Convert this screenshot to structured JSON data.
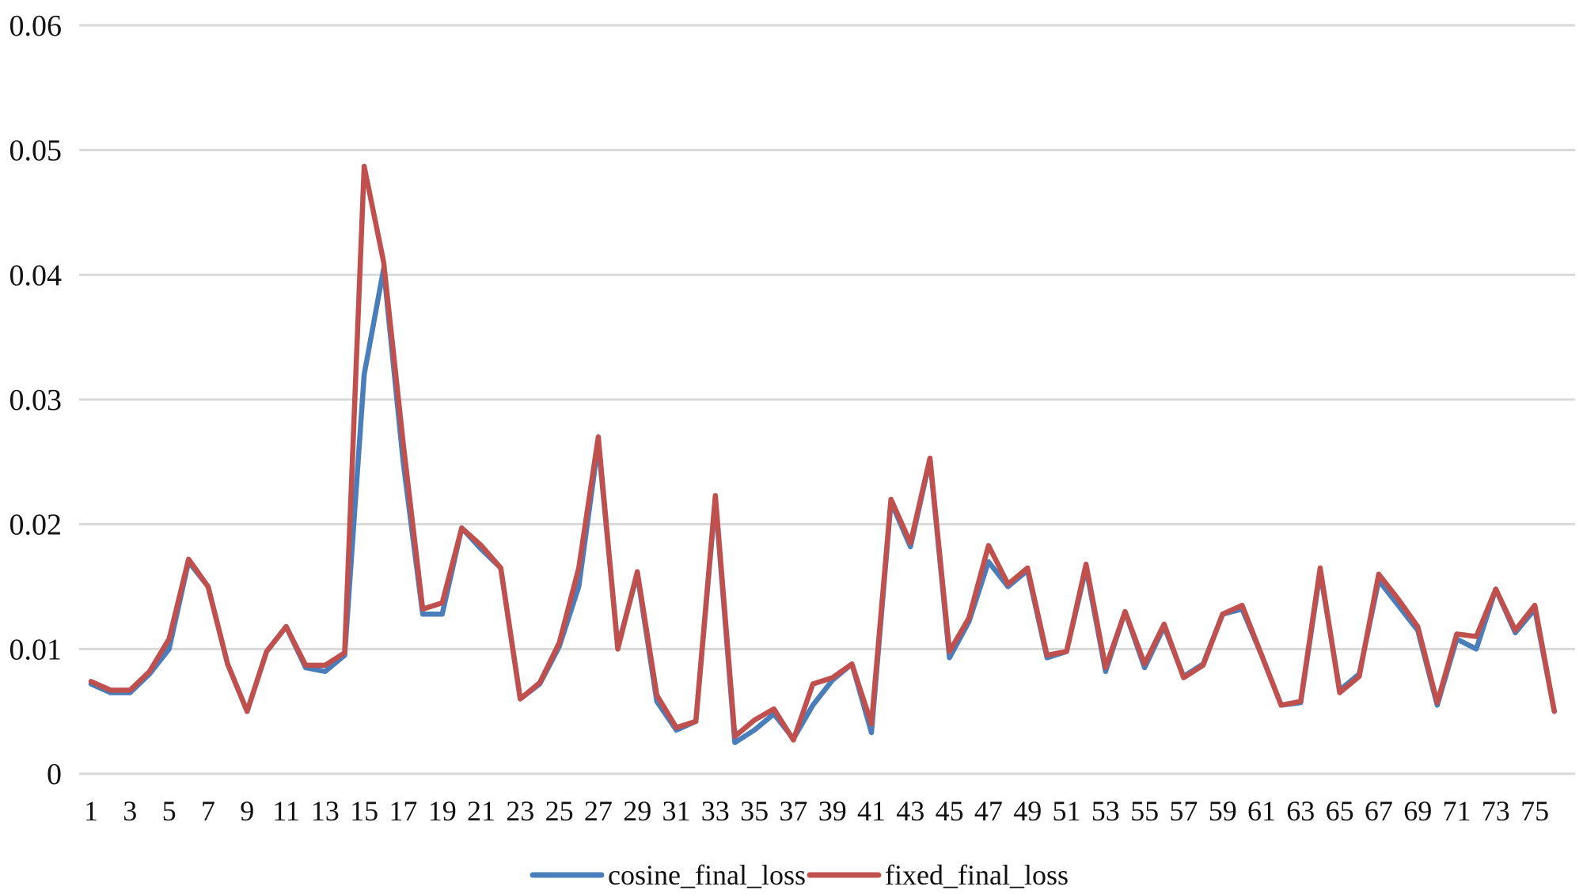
{
  "chart_data": {
    "type": "line",
    "title": "",
    "xlabel": "",
    "ylabel": "",
    "ylim": [
      0,
      0.06
    ],
    "y_ticks": [
      "0",
      "0.01",
      "0.02",
      "0.03",
      "0.04",
      "0.05",
      "0.06"
    ],
    "y_tick_values": [
      0,
      0.01,
      0.02,
      0.03,
      0.04,
      0.05,
      0.06
    ],
    "x": [
      1,
      2,
      3,
      4,
      5,
      6,
      7,
      8,
      9,
      10,
      11,
      12,
      13,
      14,
      15,
      16,
      17,
      18,
      19,
      20,
      21,
      22,
      23,
      24,
      25,
      26,
      27,
      28,
      29,
      30,
      31,
      32,
      33,
      34,
      35,
      36,
      37,
      38,
      39,
      40,
      41,
      42,
      43,
      44,
      45,
      46,
      47,
      48,
      49,
      50,
      51,
      52,
      53,
      54,
      55,
      56,
      57,
      58,
      59,
      60,
      61,
      62,
      63,
      64,
      65,
      66,
      67,
      68,
      69,
      70,
      71,
      72,
      73,
      74,
      75,
      76
    ],
    "x_tick_labels": [
      "1",
      "3",
      "5",
      "7",
      "9",
      "11",
      "13",
      "15",
      "17",
      "19",
      "21",
      "23",
      "25",
      "27",
      "29",
      "31",
      "33",
      "35",
      "37",
      "39",
      "41",
      "43",
      "45",
      "47",
      "49",
      "51",
      "53",
      "55",
      "57",
      "59",
      "61",
      "63",
      "65",
      "67",
      "69",
      "71",
      "73",
      "75"
    ],
    "grid": true,
    "legend_position": "bottom",
    "series": [
      {
        "name": "cosine_final_loss",
        "color": "#4a7ebb",
        "values": [
          0.0072,
          0.0065,
          0.0065,
          0.008,
          0.01,
          0.017,
          0.015,
          0.0088,
          0.005,
          0.0098,
          0.0118,
          0.0085,
          0.0082,
          0.0095,
          0.032,
          0.0405,
          0.025,
          0.0128,
          0.0128,
          0.0197,
          0.018,
          0.0165,
          0.006,
          0.0072,
          0.0102,
          0.015,
          0.0265,
          0.0102,
          0.016,
          0.0058,
          0.0035,
          0.0042,
          0.022,
          0.0025,
          0.0035,
          0.0048,
          0.0028,
          0.0055,
          0.0075,
          0.0088,
          0.0033,
          0.0218,
          0.0182,
          0.0252,
          0.0093,
          0.0122,
          0.017,
          0.015,
          0.0163,
          0.0093,
          0.0098,
          0.0165,
          0.0082,
          0.013,
          0.0085,
          0.0118,
          0.0078,
          0.0088,
          0.0128,
          0.0132,
          0.0095,
          0.0055,
          0.0057,
          0.0162,
          0.0067,
          0.008,
          0.0155,
          0.0135,
          0.0115,
          0.0055,
          0.0108,
          0.01,
          0.0148,
          0.0113,
          0.0132,
          0.005
        ]
      },
      {
        "name": "fixed_final_loss",
        "color": "#c0504d",
        "values": [
          0.0074,
          0.0067,
          0.0067,
          0.0082,
          0.0108,
          0.0172,
          0.015,
          0.0088,
          0.005,
          0.0098,
          0.0118,
          0.0087,
          0.0087,
          0.0097,
          0.0487,
          0.041,
          0.0265,
          0.0132,
          0.0137,
          0.0197,
          0.0183,
          0.0165,
          0.006,
          0.0073,
          0.0105,
          0.0165,
          0.027,
          0.01,
          0.0162,
          0.0063,
          0.0037,
          0.0042,
          0.0223,
          0.003,
          0.0043,
          0.0052,
          0.0027,
          0.0072,
          0.0077,
          0.0088,
          0.004,
          0.022,
          0.0185,
          0.0253,
          0.0098,
          0.0125,
          0.0183,
          0.0152,
          0.0165,
          0.0095,
          0.0098,
          0.0168,
          0.0085,
          0.013,
          0.0088,
          0.012,
          0.0077,
          0.0087,
          0.0128,
          0.0135,
          0.0095,
          0.0055,
          0.0058,
          0.0165,
          0.0065,
          0.0078,
          0.016,
          0.014,
          0.0118,
          0.0057,
          0.0112,
          0.011,
          0.0148,
          0.0115,
          0.0135,
          0.005
        ]
      }
    ]
  }
}
